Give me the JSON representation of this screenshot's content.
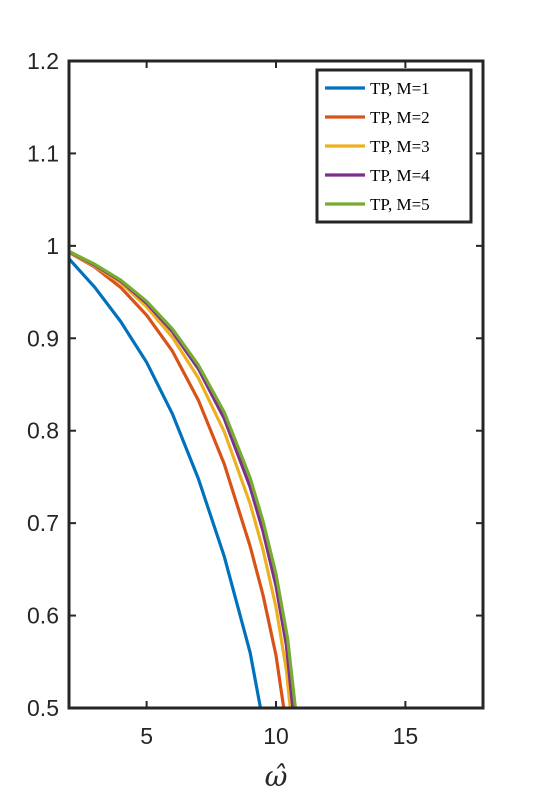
{
  "chart_data": {
    "type": "line",
    "title": "",
    "xlabel": "ω̂",
    "ylabel": "",
    "xlim": [
      2,
      18
    ],
    "ylim": [
      0.5,
      1.2
    ],
    "xticks": [
      5,
      10,
      15
    ],
    "yticks": [
      0.5,
      0.6,
      0.7,
      0.8,
      0.9,
      1,
      1.1,
      1.2
    ],
    "ytick_labels": [
      "0.5",
      "0.6",
      "0.7",
      "0.8",
      "0.9",
      "1",
      "1.1",
      "1.2"
    ],
    "xtick_labels": [
      "5",
      "10",
      "15"
    ],
    "grid": false,
    "legend_position": "top-right",
    "series": [
      {
        "name": "TP, M=1",
        "color": "#0072BD",
        "x": [
          2.0,
          3.0,
          4.0,
          5.0,
          6.0,
          7.0,
          8.0,
          9.0,
          9.4
        ],
        "y": [
          0.986,
          0.955,
          0.918,
          0.874,
          0.818,
          0.748,
          0.664,
          0.56,
          0.5
        ]
      },
      {
        "name": "TP, M=2",
        "color": "#D95319",
        "x": [
          2.0,
          3.0,
          4.0,
          5.0,
          6.0,
          7.0,
          8.0,
          9.0,
          9.5,
          10.0,
          10.3
        ],
        "y": [
          0.993,
          0.977,
          0.955,
          0.925,
          0.886,
          0.833,
          0.764,
          0.675,
          0.622,
          0.557,
          0.5
        ]
      },
      {
        "name": "TP, M=3",
        "color": "#EDB120",
        "x": [
          2.0,
          3.0,
          4.0,
          5.0,
          6.0,
          7.0,
          8.0,
          9.0,
          9.5,
          10.0,
          10.4,
          10.55
        ],
        "y": [
          0.994,
          0.978,
          0.96,
          0.934,
          0.901,
          0.857,
          0.799,
          0.721,
          0.671,
          0.609,
          0.541,
          0.5
        ]
      },
      {
        "name": "TP, M=4",
        "color": "#7E2F8E",
        "x": [
          2.0,
          3.0,
          4.0,
          5.0,
          6.0,
          7.0,
          8.0,
          9.0,
          9.5,
          10.0,
          10.4,
          10.65
        ],
        "y": [
          0.994,
          0.979,
          0.962,
          0.938,
          0.907,
          0.867,
          0.813,
          0.739,
          0.691,
          0.632,
          0.568,
          0.5
        ]
      },
      {
        "name": "TP, M=5",
        "color": "#77AC30",
        "x": [
          2.0,
          3.0,
          4.0,
          5.0,
          6.0,
          7.0,
          8.0,
          9.0,
          9.5,
          10.0,
          10.45,
          10.75
        ],
        "y": [
          0.994,
          0.98,
          0.963,
          0.94,
          0.91,
          0.871,
          0.82,
          0.749,
          0.702,
          0.645,
          0.575,
          0.5
        ]
      }
    ]
  }
}
